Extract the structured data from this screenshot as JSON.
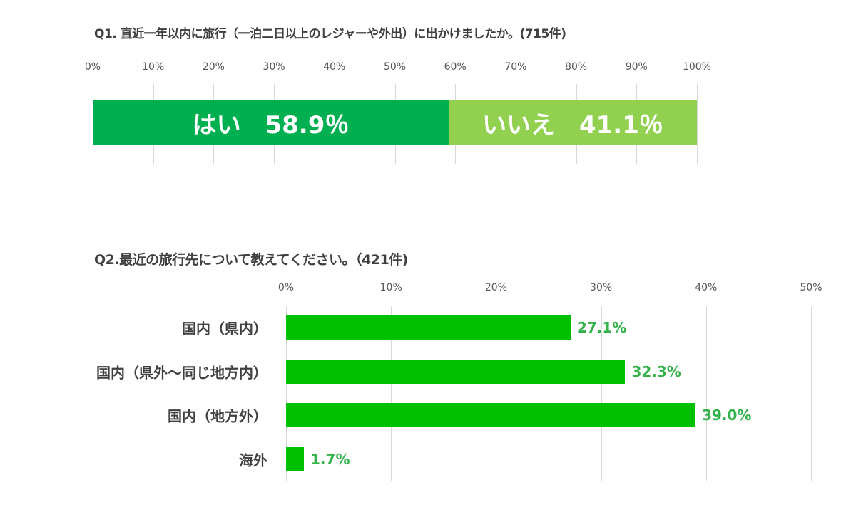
{
  "chart_data": [
    {
      "type": "bar",
      "orientation": "horizontal",
      "stacked": true,
      "title": "Q1. 直近一年以内に旅行（一泊二日以上のレジャーや外出）に出かけましたか。(715件)",
      "xlim": [
        0,
        100
      ],
      "ticks": [
        "0%",
        "10%",
        "20%",
        "30%",
        "40%",
        "50%",
        "60%",
        "70%",
        "80%",
        "90%",
        "100%"
      ],
      "grid": true,
      "legend": "none",
      "series": [
        {
          "name": "はい",
          "value": 58.9,
          "label": "はい　58.9％",
          "color": "#00b050"
        },
        {
          "name": "いいえ",
          "value": 41.1,
          "label": "いいえ　41.1％",
          "color": "#92d050"
        }
      ]
    },
    {
      "type": "bar",
      "orientation": "horizontal",
      "title": "Q2.最近の旅行先について教えてください。（421件)",
      "xlim": [
        0,
        50
      ],
      "ticks": [
        "0%",
        "10%",
        "20%",
        "30%",
        "40%",
        "50%"
      ],
      "grid": true,
      "legend": "none",
      "categories": [
        "国内（県内）",
        "国内（県外～同じ地方内）",
        "国内（地方外）",
        "海外"
      ],
      "values": [
        27.1,
        32.3,
        39.0,
        1.7
      ],
      "value_labels": [
        "27.1%",
        "32.3%",
        "39.0%",
        "1.7%"
      ],
      "color": "#00c000",
      "label_color": "#33b24a"
    }
  ]
}
